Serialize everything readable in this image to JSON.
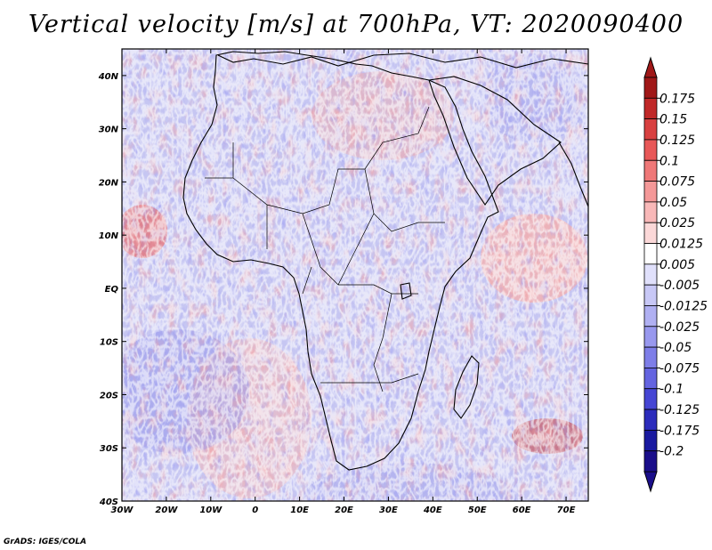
{
  "title": "Vertical velocity [m/s] at 700hPa, VT: 2020090400",
  "footer": "GrADS: IGES/COLA",
  "map": {
    "type": "shaded field map",
    "variable": "Vertical velocity",
    "units": "m/s",
    "level": "700hPa",
    "valid_time": "2020090400",
    "region": "Africa",
    "lon_range": [
      -30,
      75
    ],
    "lat_range": [
      -40,
      45
    ],
    "lon_ticks": [
      "30W",
      "20W",
      "10W",
      "0",
      "10E",
      "20E",
      "30E",
      "40E",
      "50E",
      "60E",
      "70E"
    ],
    "lat_ticks": [
      "40N",
      "30N",
      "20N",
      "10N",
      "EQ",
      "10S",
      "20S",
      "30S",
      "40S"
    ]
  },
  "colorbar": {
    "labels": [
      "0.175",
      "0.15",
      "0.125",
      "0.1",
      "0.075",
      "0.05",
      "0.025",
      "0.0125",
      "0.005",
      "-0.005",
      "-0.0125",
      "-0.025",
      "-0.05",
      "-0.075",
      "-0.1",
      "-0.125",
      "-0.175",
      "-0.2"
    ],
    "colors": [
      "#a01818",
      "#c02828",
      "#d84040",
      "#e85858",
      "#ef7878",
      "#f49898",
      "#f8b8b8",
      "#fbd8d8",
      "#ffffff",
      "#e0e0fb",
      "#c8c8f6",
      "#b0b0f2",
      "#9898ee",
      "#7e7ee8",
      "#6464e0",
      "#4646d4",
      "#2c2cbc",
      "#1a1aa0",
      "#1a0e8a"
    ],
    "top_arrow_color": "#a01818",
    "bottom_arrow_color": "#1a0e8a"
  }
}
